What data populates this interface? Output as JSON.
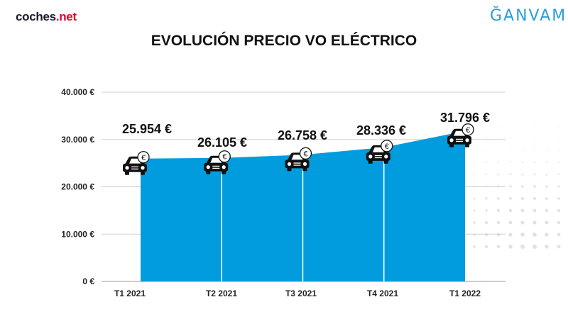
{
  "brand": {
    "left_logo_main": "coches",
    "left_logo_accent": ".net",
    "right_logo": "ĞANVAM"
  },
  "colors": {
    "area": "#009cde",
    "grid": "#d0d0d0",
    "accent_red": "#e4002b",
    "ganvam_blue": "#2a9fd6"
  },
  "chart_data": {
    "type": "area",
    "title": "EVOLUCIÓN PRECIO VO ELÉCTRICO",
    "xlabel": "",
    "ylabel": "",
    "categories": [
      "T1 2021",
      "T2 2021",
      "T3 2021",
      "T4 2021",
      "T1 2022"
    ],
    "series": [
      {
        "name": "Precio VO eléctrico",
        "values": [
          25954,
          26105,
          26758,
          28336,
          31796
        ]
      }
    ],
    "data_labels": [
      "25.954 €",
      "26.105 €",
      "26.758 €",
      "28.336 €",
      "31.796 €"
    ],
    "ylim": [
      0,
      40000
    ],
    "yticks": [
      0,
      10000,
      20000,
      30000,
      40000
    ],
    "ytick_labels": [
      "0 €",
      "10.000 €",
      "20.000 €",
      "30.000 €",
      "40.000 €"
    ],
    "grid": true,
    "legend": "none",
    "marker_icon": "car-euro-icon"
  }
}
